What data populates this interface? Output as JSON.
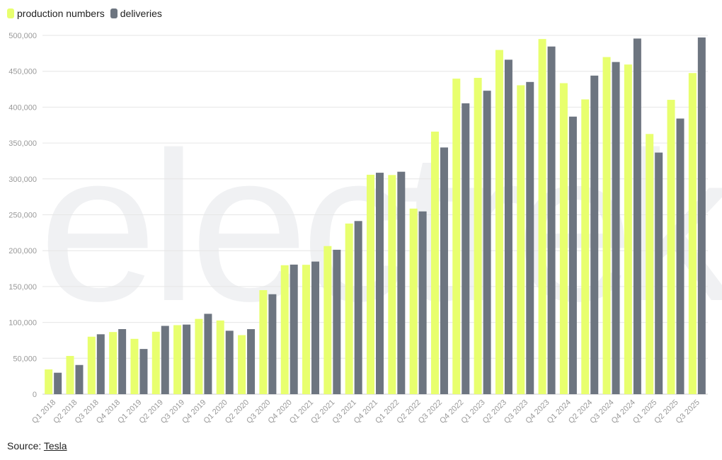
{
  "legend": {
    "production_label": "production numbers",
    "deliveries_label": "deliveries"
  },
  "watermark": "electrek",
  "source": {
    "prefix": "Source: ",
    "link_text": "Tesla"
  },
  "colors": {
    "production": "#e8ff6e",
    "deliveries": "#6d7580",
    "grid": "#e6e6e6",
    "tick": "#999999"
  },
  "chart_data": {
    "type": "bar",
    "categories": [
      "Q1 2018",
      "Q2 2018",
      "Q3 2018",
      "Q4 2018",
      "Q1 2019",
      "Q2 2019",
      "Q3 2019",
      "Q4 2019",
      "Q1 2020",
      "Q2 2020",
      "Q3 2020",
      "Q4 2020",
      "Q1 2021",
      "Q2 2021",
      "Q3 2021",
      "Q4 2021",
      "Q1 2022",
      "Q2 2022",
      "Q3 2022",
      "Q4 2022",
      "Q1 2023",
      "Q2 2023",
      "Q3 2023",
      "Q4 2023",
      "Q1 2024",
      "Q2 2024",
      "Q3 2024",
      "Q4 2024",
      "Q1 2025",
      "Q2 2025",
      "Q3 2025"
    ],
    "series": [
      {
        "name": "production numbers",
        "color": "#e8ff6e",
        "values": [
          34500,
          53300,
          80100,
          86600,
          77100,
          87000,
          96200,
          104900,
          102700,
          82300,
          145000,
          179700,
          180300,
          206400,
          237800,
          305800,
          305400,
          258600,
          365900,
          439700,
          440800,
          479700,
          430500,
          494900,
          433400,
          410800,
          469800,
          459400,
          362600,
          410200,
          447500
        ]
      },
      {
        "name": "deliveries",
        "color": "#6d7580",
        "values": [
          29900,
          40700,
          83500,
          90700,
          63000,
          95200,
          97000,
          112000,
          88400,
          90650,
          139300,
          180570,
          184800,
          201250,
          241300,
          308600,
          310000,
          254700,
          343800,
          405300,
          422900,
          466100,
          435100,
          484500,
          386800,
          443950,
          462900,
          495600,
          336700,
          384100,
          497100
        ]
      }
    ],
    "ylim": [
      0,
      500000
    ],
    "yticks": [
      0,
      50000,
      100000,
      150000,
      200000,
      250000,
      300000,
      350000,
      400000,
      450000,
      500000
    ],
    "ytick_labels": [
      "0",
      "50,000",
      "100,000",
      "150,000",
      "200,000",
      "250,000",
      "300,000",
      "350,000",
      "400,000",
      "450,000",
      "500,000"
    ],
    "grid": true,
    "legend_position": "top-left",
    "xlabel": "",
    "ylabel": "",
    "title": ""
  }
}
